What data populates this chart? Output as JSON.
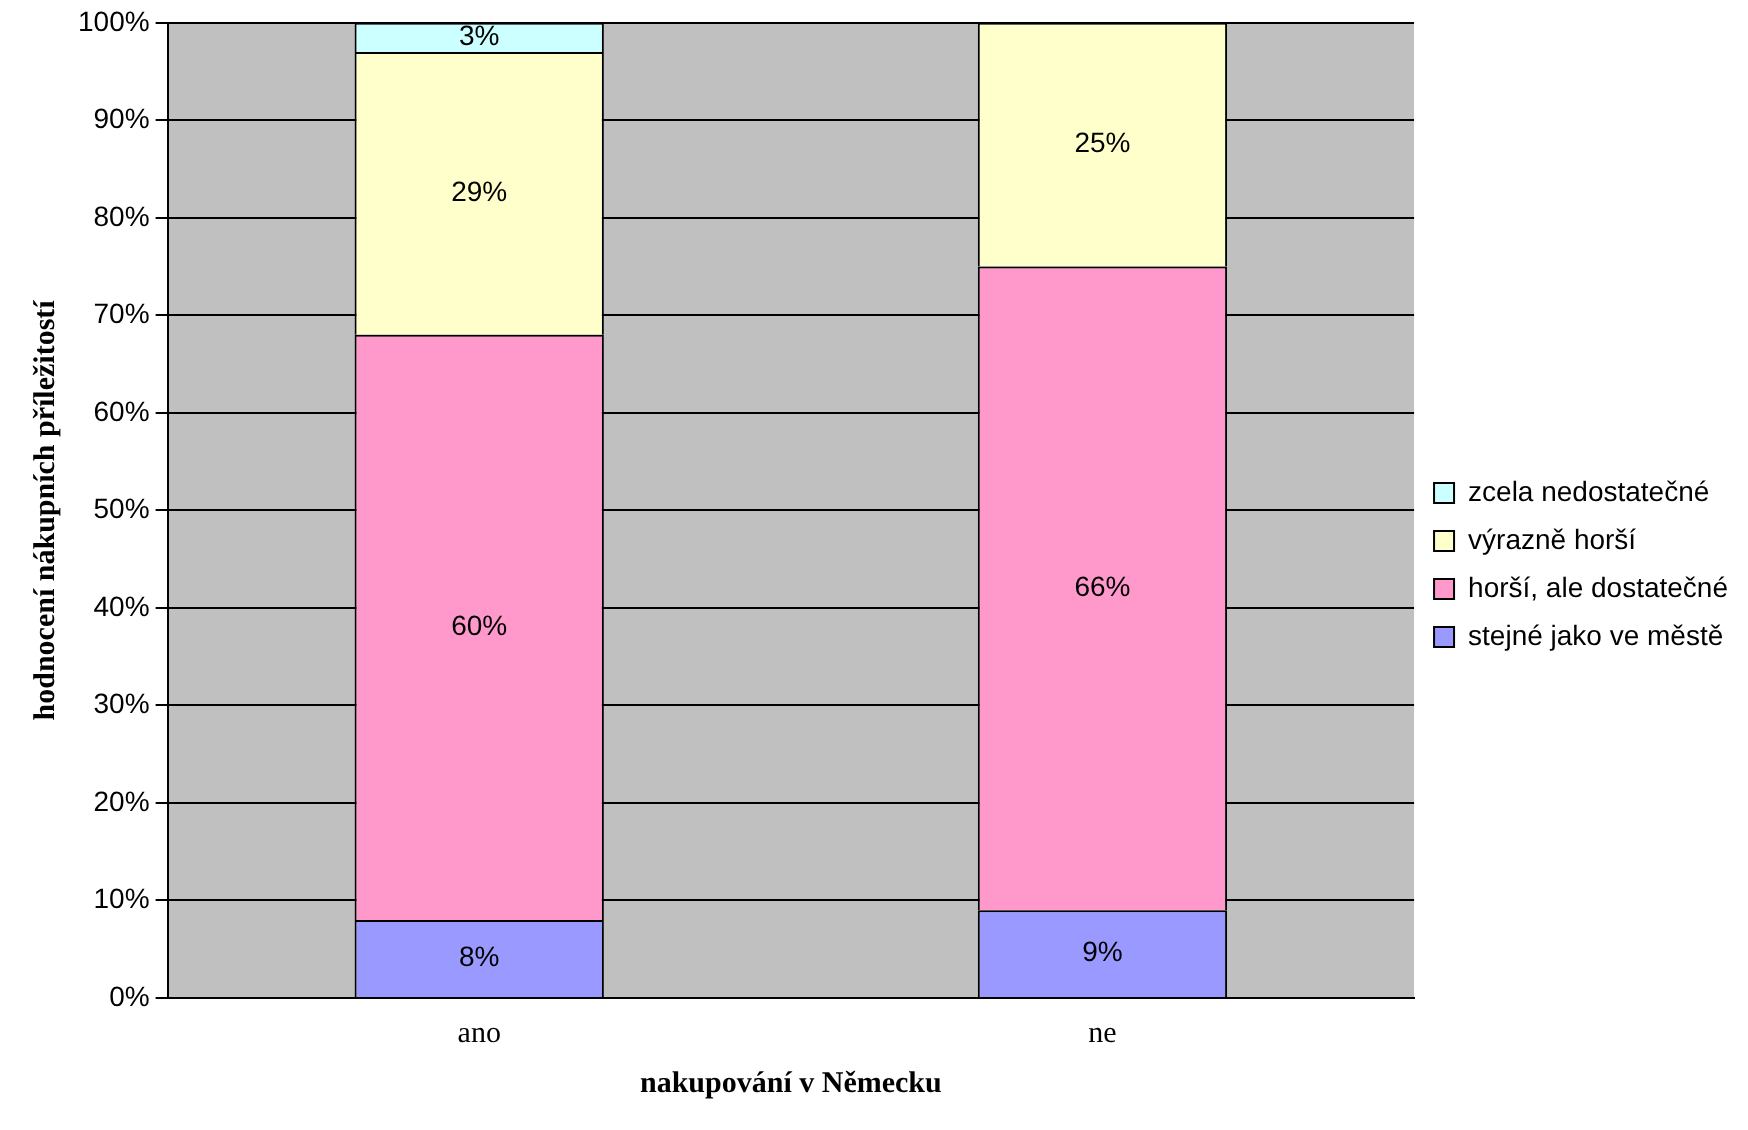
{
  "chart_data": {
    "type": "bar",
    "stacked": true,
    "xlabel": "nakupování v Německu",
    "ylabel": "hodnocení nákupních příležitostí",
    "categories": [
      "ano",
      "ne"
    ],
    "series": [
      {
        "name": "stejné jako ve městě",
        "color": "#9999ff",
        "values": [
          8,
          9
        ],
        "value_labels": [
          "8%",
          "9%"
        ]
      },
      {
        "name": "horší, ale dostatečné",
        "color": "#ff99cc",
        "values": [
          60,
          66
        ],
        "value_labels": [
          "60%",
          "66%"
        ]
      },
      {
        "name": "výrazně horší",
        "color": "#ffffcc",
        "values": [
          29,
          25
        ],
        "value_labels": [
          "29%",
          "25%"
        ]
      },
      {
        "name": "zcela nedostatečné",
        "color": "#ccffff",
        "values": [
          3,
          null
        ],
        "value_labels": [
          "3%",
          null
        ]
      }
    ],
    "ylim": [
      0,
      100
    ],
    "yticks": [
      {
        "value": 0,
        "label": "0%"
      },
      {
        "value": 10,
        "label": "10%"
      },
      {
        "value": 20,
        "label": "20%"
      },
      {
        "value": 30,
        "label": "30%"
      },
      {
        "value": 40,
        "label": "40%"
      },
      {
        "value": 50,
        "label": "50%"
      },
      {
        "value": 60,
        "label": "60%"
      },
      {
        "value": 70,
        "label": "70%"
      },
      {
        "value": 80,
        "label": "80%"
      },
      {
        "value": 90,
        "label": "90%"
      },
      {
        "value": 100,
        "label": "100%"
      }
    ],
    "grid": "y",
    "legend": "right"
  }
}
